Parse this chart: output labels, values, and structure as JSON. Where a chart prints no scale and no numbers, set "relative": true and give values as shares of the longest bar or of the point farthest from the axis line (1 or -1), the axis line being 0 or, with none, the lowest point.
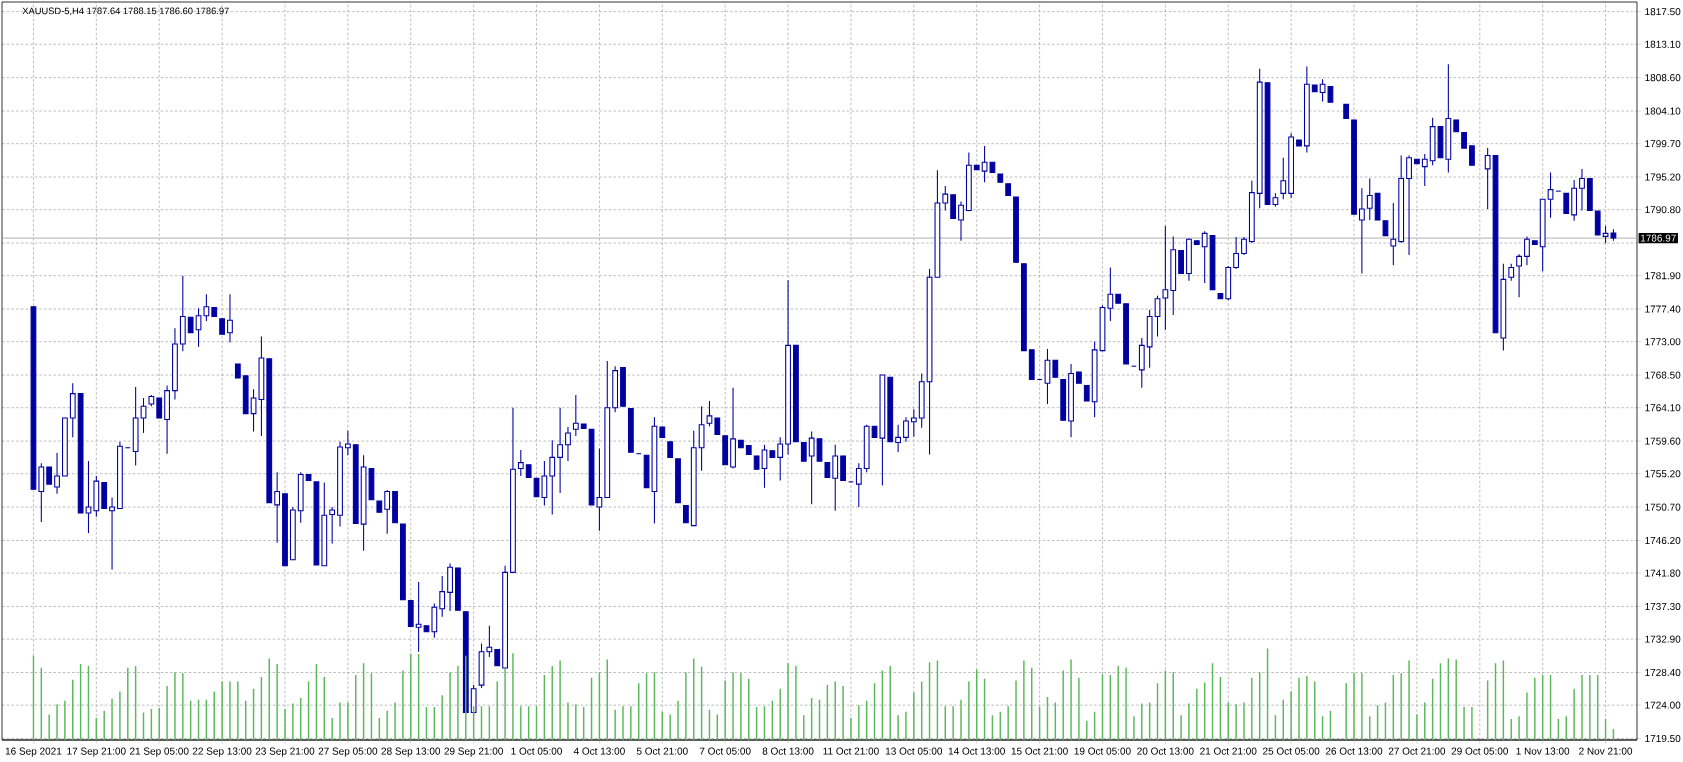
{
  "chart_data": [
    {
      "type": "candlestick",
      "title": "XAUUSD-5,H4  1787.64 1788.15 1786.60 1786.97",
      "color": "#0000a0",
      "grid": true,
      "categories": [
        "16 Sep 2021",
        null,
        null,
        null,
        null,
        null,
        null,
        null,
        "17 Sep 21:00",
        null,
        null,
        null,
        null,
        null,
        null,
        null,
        "21 Sep 05:00",
        null,
        null,
        null,
        null,
        null,
        null,
        null,
        "22 Sep 13:00",
        null,
        null,
        null,
        null,
        null,
        null,
        null,
        "23 Sep 21:00",
        null,
        null,
        null,
        null,
        null,
        null,
        null,
        "27 Sep 05:00",
        null,
        null,
        null,
        null,
        null,
        null,
        null,
        "28 Sep 13:00",
        null,
        null,
        null,
        null,
        null,
        null,
        null,
        "29 Sep 21:00",
        null,
        null,
        null,
        null,
        null,
        null,
        null,
        "1 Oct 05:00",
        null,
        null,
        null,
        null,
        null,
        null,
        null,
        "4 Oct 13:00",
        null,
        null,
        null,
        null,
        null,
        null,
        null,
        "5 Oct 21:00",
        null,
        null,
        null,
        null,
        null,
        null,
        null,
        "7 Oct 05:00",
        null,
        null,
        null,
        null,
        null,
        null,
        null,
        "8 Oct 13:00",
        null,
        null,
        null,
        null,
        null,
        null,
        null,
        "11 Oct 21:00",
        null,
        null,
        null,
        null,
        null,
        null,
        null,
        "13 Oct 05:00",
        null,
        null,
        null,
        null,
        null,
        null,
        null,
        "14 Oct 13:00",
        null,
        null,
        null,
        null,
        null,
        null,
        null,
        "15 Oct 21:00",
        null,
        null,
        null,
        null,
        null,
        null,
        null,
        "19 Oct 05:00",
        null,
        null,
        null,
        null,
        null,
        null,
        null,
        "20 Oct 13:00",
        null,
        null,
        null,
        null,
        null,
        null,
        null,
        "21 Oct 21:00",
        null,
        null,
        null,
        null,
        null,
        null,
        null,
        "25 Oct 05:00",
        null,
        null,
        null,
        null,
        null,
        null,
        null,
        "26 Oct 13:00",
        null,
        null,
        null,
        null,
        null,
        null,
        null,
        "27 Oct 21:00",
        null,
        null,
        null,
        null,
        null,
        null,
        null,
        "29 Oct 05:00",
        null,
        null,
        null,
        null,
        null,
        null,
        null,
        "1 Nov 13:00",
        null,
        null,
        null,
        null,
        null,
        null,
        null,
        "2 Nov 21:00",
        null
      ],
      "ohlc": [
        [
          1777.7,
          1777.7,
          1753.1,
          1753.1
        ],
        [
          1752.8,
          1756.6,
          1748.7,
          1756.1
        ],
        [
          1756.1,
          1756.1,
          1753.8,
          1753.8
        ],
        [
          1753.4,
          1758.0,
          1752.5,
          1754.9
        ],
        [
          1754.9,
          1762.7,
          1754.9,
          1762.7
        ],
        [
          1762.7,
          1767.4,
          1760.1,
          1766.0
        ],
        [
          1766.0,
          1766.0,
          1749.9,
          1749.9
        ],
        [
          1749.9,
          1756.9,
          1747.2,
          1750.7
        ],
        [
          1750.2,
          1754.9,
          1749.4,
          1754.2
        ],
        [
          1754.0,
          1754.0,
          1750.5,
          1750.5
        ],
        [
          1750.2,
          1752.0,
          1742.3,
          1750.7
        ],
        [
          1750.5,
          1759.5,
          1750.5,
          1758.9
        ],
        [
          1758.7,
          1758.7,
          1758.7,
          1758.7
        ],
        [
          1758.2,
          1766.9,
          1756.3,
          1762.7
        ],
        [
          1762.7,
          1765.4,
          1760.7,
          1764.3
        ],
        [
          1764.6,
          1765.8,
          1764.3,
          1765.6
        ],
        [
          1765.4,
          1765.4,
          1762.7,
          1762.7
        ],
        [
          1762.5,
          1767.1,
          1757.9,
          1766.4
        ],
        [
          1766.4,
          1774.8,
          1765.2,
          1772.7
        ],
        [
          1772.7,
          1781.9,
          1771.7,
          1776.4
        ],
        [
          1776.3,
          1776.3,
          1774.2,
          1774.2
        ],
        [
          1774.6,
          1777.5,
          1772.3,
          1776.5
        ],
        [
          1776.5,
          1779.4,
          1775.8,
          1777.7
        ],
        [
          1777.6,
          1777.6,
          1776.4,
          1776.4
        ],
        [
          1776.1,
          1776.1,
          1774.0,
          1774.0
        ],
        [
          1774.2,
          1779.4,
          1772.9,
          1775.9
        ],
        [
          1770.0,
          1770.0,
          1768.1,
          1768.1
        ],
        [
          1768.4,
          1768.4,
          1763.3,
          1763.3
        ],
        [
          1763.3,
          1766.6,
          1760.9,
          1765.4
        ],
        [
          1765.2,
          1773.7,
          1760.3,
          1770.8
        ],
        [
          1770.7,
          1770.7,
          1751.3,
          1751.3
        ],
        [
          1751.0,
          1755.4,
          1745.9,
          1752.8
        ],
        [
          1752.5,
          1752.5,
          1742.8,
          1742.8
        ],
        [
          1743.6,
          1750.7,
          1743.6,
          1750.3
        ],
        [
          1750.2,
          1755.4,
          1748.6,
          1755.1
        ],
        [
          1755.1,
          1755.1,
          1754.3,
          1754.3
        ],
        [
          1754.1,
          1754.1,
          1742.9,
          1742.9
        ],
        [
          1742.8,
          1754.0,
          1742.8,
          1749.6
        ],
        [
          1749.7,
          1750.7,
          1745.8,
          1750.3
        ],
        [
          1749.6,
          1759.5,
          1748.1,
          1758.8
        ],
        [
          1758.7,
          1761.0,
          1757.7,
          1759.2
        ],
        [
          1759.1,
          1759.1,
          1748.5,
          1748.5
        ],
        [
          1748.4,
          1757.7,
          1744.8,
          1756.1
        ],
        [
          1755.9,
          1755.9,
          1751.7,
          1751.7
        ],
        [
          1751.5,
          1751.5,
          1750.0,
          1750.0
        ],
        [
          1750.4,
          1753.0,
          1747.1,
          1752.8
        ],
        [
          1752.8,
          1752.8,
          1748.6,
          1748.6
        ],
        [
          1748.4,
          1748.4,
          1738.2,
          1738.2
        ],
        [
          1738.1,
          1738.1,
          1734.6,
          1734.6
        ],
        [
          1734.5,
          1740.6,
          1731.2,
          1734.9
        ],
        [
          1734.7,
          1734.7,
          1733.9,
          1733.9
        ],
        [
          1733.9,
          1737.7,
          1733.1,
          1737.2
        ],
        [
          1737.0,
          1741.4,
          1735.9,
          1739.3
        ],
        [
          1739.2,
          1743.1,
          1736.7,
          1742.6
        ],
        [
          1742.5,
          1742.5,
          1736.8,
          1736.8
        ],
        [
          1736.6,
          1736.6,
          1723.0,
          1723.0
        ],
        [
          1723.0,
          1726.7,
          1722.8,
          1726.2
        ],
        [
          1726.7,
          1732.3,
          1726.3,
          1731.2
        ],
        [
          1731.2,
          1734.7,
          1730.5,
          1731.8
        ],
        [
          1731.5,
          1731.5,
          1729.3,
          1729.3
        ],
        [
          1729.0,
          1742.8,
          1729.0,
          1741.9
        ],
        [
          1741.9,
          1764.1,
          1741.9,
          1755.8
        ],
        [
          1755.9,
          1758.4,
          1754.9,
          1756.7
        ],
        [
          1756.4,
          1756.4,
          1754.7,
          1754.7
        ],
        [
          1754.6,
          1754.6,
          1752.1,
          1752.1
        ],
        [
          1752.0,
          1756.9,
          1750.9,
          1754.9
        ],
        [
          1754.9,
          1759.7,
          1749.7,
          1757.4
        ],
        [
          1757.4,
          1764.1,
          1752.6,
          1759.1
        ],
        [
          1759.1,
          1761.5,
          1756.9,
          1760.7
        ],
        [
          1761.2,
          1765.8,
          1760.3,
          1762.0
        ],
        [
          1761.9,
          1761.9,
          1761.3,
          1761.3
        ],
        [
          1761.2,
          1761.2,
          1751.0,
          1751.0
        ],
        [
          1750.7,
          1758.6,
          1747.5,
          1752.0
        ],
        [
          1752.0,
          1770.4,
          1752.0,
          1764.1
        ],
        [
          1764.1,
          1769.7,
          1763.5,
          1769.1
        ],
        [
          1769.5,
          1769.5,
          1764.3,
          1764.3
        ],
        [
          1764.0,
          1764.0,
          1758.1,
          1758.1
        ],
        [
          1757.9,
          1757.9,
          1757.9,
          1757.9
        ],
        [
          1757.7,
          1757.7,
          1753.3,
          1753.3
        ],
        [
          1752.8,
          1762.8,
          1748.5,
          1761.6
        ],
        [
          1761.5,
          1761.5,
          1760.1,
          1760.1
        ],
        [
          1759.5,
          1759.5,
          1757.4,
          1757.4
        ],
        [
          1757.2,
          1757.2,
          1751.3,
          1751.3
        ],
        [
          1750.9,
          1750.9,
          1748.6,
          1748.6
        ],
        [
          1748.2,
          1761.0,
          1748.2,
          1758.7
        ],
        [
          1758.7,
          1764.3,
          1755.6,
          1761.8
        ],
        [
          1762.0,
          1765.0,
          1761.6,
          1763.0
        ],
        [
          1762.7,
          1762.7,
          1760.5,
          1760.5
        ],
        [
          1760.3,
          1760.3,
          1756.4,
          1756.4
        ],
        [
          1756.1,
          1766.8,
          1755.9,
          1759.9
        ],
        [
          1759.7,
          1759.7,
          1758.7,
          1758.7
        ],
        [
          1759.0,
          1759.0,
          1757.8,
          1757.8
        ],
        [
          1757.6,
          1757.6,
          1755.8,
          1755.8
        ],
        [
          1755.9,
          1759.1,
          1753.3,
          1758.4
        ],
        [
          1758.3,
          1758.3,
          1757.4,
          1757.4
        ],
        [
          1757.4,
          1760.1,
          1754.3,
          1759.2
        ],
        [
          1759.2,
          1781.3,
          1757.8,
          1772.5
        ],
        [
          1772.5,
          1772.5,
          1759.5,
          1759.5
        ],
        [
          1759.4,
          1759.4,
          1756.9,
          1756.9
        ],
        [
          1757.6,
          1760.9,
          1751.1,
          1760.0
        ],
        [
          1759.9,
          1759.9,
          1756.9,
          1756.9
        ],
        [
          1756.7,
          1756.7,
          1754.7,
          1754.7
        ],
        [
          1754.6,
          1759.1,
          1750.2,
          1757.6
        ],
        [
          1757.6,
          1757.6,
          1754.3,
          1754.3
        ],
        [
          1754.1,
          1754.1,
          1754.1,
          1754.1
        ],
        [
          1753.8,
          1756.6,
          1750.7,
          1755.9
        ],
        [
          1755.9,
          1761.8,
          1755.4,
          1761.6
        ],
        [
          1761.6,
          1761.6,
          1760.1,
          1760.1
        ],
        [
          1760.0,
          1768.5,
          1753.6,
          1768.5
        ],
        [
          1768.2,
          1768.2,
          1759.5,
          1759.5
        ],
        [
          1759.4,
          1761.8,
          1758.1,
          1760.1
        ],
        [
          1760.1,
          1762.8,
          1759.5,
          1762.3
        ],
        [
          1762.2,
          1763.9,
          1760.2,
          1762.7
        ],
        [
          1762.7,
          1768.7,
          1761.4,
          1767.6
        ],
        [
          1767.6,
          1782.8,
          1757.8,
          1781.7
        ],
        [
          1781.7,
          1796.1,
          1781.7,
          1791.7
        ],
        [
          1791.7,
          1794.0,
          1790.7,
          1792.9
        ],
        [
          1792.8,
          1792.8,
          1789.6,
          1789.6
        ],
        [
          1789.4,
          1791.9,
          1786.6,
          1791.4
        ],
        [
          1790.7,
          1798.5,
          1790.6,
          1796.8
        ],
        [
          1796.8,
          1796.8,
          1796.2,
          1796.2
        ],
        [
          1796.0,
          1799.4,
          1794.5,
          1797.2
        ],
        [
          1797.2,
          1797.2,
          1795.8,
          1795.8
        ],
        [
          1795.6,
          1795.6,
          1794.5,
          1794.5
        ],
        [
          1794.3,
          1794.3,
          1792.7,
          1792.7
        ],
        [
          1792.5,
          1792.5,
          1783.7,
          1783.7
        ],
        [
          1783.5,
          1783.5,
          1771.8,
          1771.8
        ],
        [
          1771.9,
          1771.9,
          1767.9,
          1767.9
        ],
        [
          1767.9,
          1767.9,
          1767.9,
          1767.9
        ],
        [
          1767.4,
          1772.0,
          1764.6,
          1770.5
        ],
        [
          1770.5,
          1770.5,
          1768.2,
          1768.2
        ],
        [
          1767.9,
          1767.9,
          1762.4,
          1762.4
        ],
        [
          1762.3,
          1770.0,
          1760.1,
          1768.7
        ],
        [
          1768.9,
          1768.9,
          1767.4,
          1767.4
        ],
        [
          1767.1,
          1767.1,
          1765.0,
          1765.0
        ],
        [
          1764.9,
          1773.0,
          1762.8,
          1771.9
        ],
        [
          1771.8,
          1777.9,
          1771.7,
          1777.6
        ],
        [
          1777.5,
          1783.0,
          1775.8,
          1779.4
        ],
        [
          1779.4,
          1779.4,
          1778.2,
          1778.2
        ],
        [
          1778.1,
          1778.1,
          1770.0,
          1770.0
        ],
        [
          1769.7,
          1769.7,
          1769.7,
          1769.7
        ],
        [
          1769.2,
          1773.5,
          1766.8,
          1772.5
        ],
        [
          1772.3,
          1777.3,
          1769.5,
          1776.4
        ],
        [
          1776.4,
          1779.2,
          1773.7,
          1778.8
        ],
        [
          1778.9,
          1788.6,
          1774.6,
          1780.0
        ],
        [
          1779.9,
          1787.2,
          1776.6,
          1785.4
        ],
        [
          1785.3,
          1785.3,
          1782.2,
          1782.2
        ],
        [
          1782.2,
          1786.9,
          1781.2,
          1786.8
        ],
        [
          1786.6,
          1786.6,
          1786.1,
          1786.1
        ],
        [
          1785.8,
          1787.9,
          1780.9,
          1787.6
        ],
        [
          1787.3,
          1787.3,
          1780.0,
          1780.0
        ],
        [
          1779.5,
          1779.5,
          1778.8,
          1778.8
        ],
        [
          1778.8,
          1783.2,
          1778.6,
          1783.0
        ],
        [
          1783.0,
          1787.1,
          1782.8,
          1784.9
        ],
        [
          1784.9,
          1787.1,
          1784.7,
          1786.8
        ],
        [
          1786.5,
          1794.7,
          1786.3,
          1793.1
        ],
        [
          1793.0,
          1809.8,
          1791.0,
          1808.0
        ],
        [
          1807.9,
          1807.9,
          1791.5,
          1791.5
        ],
        [
          1791.5,
          1793.0,
          1791.2,
          1792.4
        ],
        [
          1793.0,
          1797.8,
          1792.2,
          1794.7
        ],
        [
          1793.0,
          1801.1,
          1792.4,
          1800.6
        ],
        [
          1800.2,
          1800.2,
          1799.4,
          1799.4
        ],
        [
          1799.4,
          1810.1,
          1798.5,
          1807.7
        ],
        [
          1807.6,
          1807.6,
          1806.7,
          1806.7
        ],
        [
          1806.6,
          1808.4,
          1805.4,
          1807.7
        ],
        [
          1807.4,
          1807.4,
          1805.3,
          1805.3
        ],
        null,
        [
          1805.0,
          1805.0,
          1803.1,
          1803.1
        ],
        [
          1802.9,
          1802.9,
          1790.2,
          1790.2
        ],
        [
          1789.4,
          1793.7,
          1782.2,
          1790.9
        ],
        [
          1791.0,
          1795.0,
          1789.4,
          1792.7
        ],
        [
          1793.0,
          1793.0,
          1789.4,
          1789.4
        ],
        [
          1789.3,
          1789.3,
          1787.3,
          1787.3
        ],
        [
          1785.9,
          1791.7,
          1783.3,
          1786.8
        ],
        [
          1786.5,
          1798.1,
          1786.3,
          1795.0
        ],
        [
          1795.0,
          1798.1,
          1784.7,
          1797.8
        ],
        [
          1797.6,
          1797.6,
          1797.0,
          1797.0
        ],
        [
          1796.6,
          1798.3,
          1794.0,
          1797.6
        ],
        [
          1797.4,
          1803.2,
          1796.8,
          1802.0
        ],
        [
          1802.0,
          1802.0,
          1797.8,
          1797.8
        ],
        [
          1797.6,
          1810.4,
          1795.8,
          1803.1
        ],
        [
          1802.9,
          1802.9,
          1801.3,
          1801.3
        ],
        [
          1801.2,
          1801.2,
          1799.1,
          1799.1
        ],
        [
          1799.4,
          1799.4,
          1796.8,
          1796.8
        ],
        null,
        [
          1796.3,
          1799.1,
          1790.9,
          1798.1
        ],
        [
          1798.1,
          1798.1,
          1774.2,
          1774.2
        ],
        [
          1773.5,
          1783.5,
          1771.8,
          1781.4
        ],
        [
          1781.7,
          1783.5,
          1781.2,
          1783.0
        ],
        [
          1783.2,
          1784.8,
          1779.0,
          1784.5
        ],
        [
          1784.5,
          1787.2,
          1783.3,
          1786.8
        ],
        [
          1786.6,
          1786.6,
          1786.1,
          1786.1
        ],
        [
          1785.8,
          1792.2,
          1782.5,
          1792.2
        ],
        [
          1792.2,
          1795.8,
          1789.7,
          1793.5
        ],
        [
          1793.3,
          1793.3,
          1793.3,
          1793.3
        ],
        [
          1793.0,
          1793.0,
          1790.3,
          1790.3
        ],
        [
          1790.1,
          1794.8,
          1789.3,
          1793.7
        ],
        [
          1793.7,
          1796.3,
          1790.7,
          1795.0
        ],
        [
          1795.0,
          1795.0,
          1790.7,
          1790.7
        ],
        [
          1790.6,
          1790.6,
          1787.4,
          1787.4
        ],
        [
          1787.2,
          1788.6,
          1786.3,
          1787.6
        ],
        [
          1787.64,
          1788.15,
          1786.6,
          1786.97
        ]
      ],
      "ylim": [
        1719.3,
        1818.8
      ],
      "yticks": [
        {
          "value": 1817.5,
          "label": "1817.50"
        },
        {
          "value": 1813.1,
          "label": "1813.10"
        },
        {
          "value": 1808.6,
          "label": "1808.60"
        },
        {
          "value": 1804.1,
          "label": "1804.10"
        },
        {
          "value": 1799.7,
          "label": "1799.70"
        },
        {
          "value": 1795.2,
          "label": "1795.20"
        },
        {
          "value": 1790.8,
          "label": "1790.80"
        },
        {
          "value": 1786.3,
          "label": null
        },
        {
          "value": 1781.9,
          "label": "1781.90"
        },
        {
          "value": 1777.4,
          "label": "1777.40"
        },
        {
          "value": 1773,
          "label": "1773.00"
        },
        {
          "value": 1768.5,
          "label": "1768.50"
        },
        {
          "value": 1764.1,
          "label": "1764.10"
        },
        {
          "value": 1759.6,
          "label": "1759.60"
        },
        {
          "value": 1755.2,
          "label": "1755.20"
        },
        {
          "value": 1750.7,
          "label": "1750.70"
        },
        {
          "value": 1746.2,
          "label": "1746.20"
        },
        {
          "value": 1741.8,
          "label": "1741.80"
        },
        {
          "value": 1737.3,
          "label": "1737.30"
        },
        {
          "value": 1732.9,
          "label": "1732.90"
        },
        {
          "value": 1728.4,
          "label": "1728.40"
        },
        {
          "value": 1724,
          "label": "1724.00"
        },
        {
          "value": 1719.5,
          "label": "1719.50"
        }
      ],
      "ref_lines": [
        {
          "axis": "y",
          "value": 1786.97,
          "label": "1786.97",
          "color": "#a0a0a0"
        }
      ]
    },
    {
      "type": "bar",
      "relative": true,
      "color": "#5cb85c",
      "categories": [
        null,
        null,
        null,
        null,
        null,
        null,
        null,
        null,
        null,
        null,
        null,
        null,
        null,
        null,
        null,
        null,
        null,
        null,
        null,
        null,
        null,
        null,
        null,
        null,
        null,
        null,
        null,
        null,
        null,
        null,
        null,
        null,
        null,
        null,
        null,
        null,
        null,
        null,
        null,
        null,
        null,
        null,
        null,
        null,
        null,
        null,
        null,
        null,
        null,
        null,
        null,
        null,
        null,
        null,
        null,
        null,
        null,
        null,
        null,
        null,
        null,
        null,
        null,
        null,
        null,
        null,
        null,
        null,
        null,
        null,
        null,
        null,
        null,
        null,
        null,
        null,
        null,
        null,
        null,
        null,
        null,
        null,
        null,
        null,
        null,
        null,
        null,
        null,
        null,
        null,
        null,
        null,
        null,
        null,
        null,
        null,
        null,
        null,
        null,
        null,
        null,
        null,
        null,
        null,
        null,
        null,
        null,
        null,
        null,
        null,
        null,
        null,
        null,
        null,
        null,
        null,
        null,
        null,
        null,
        null,
        null,
        null,
        null,
        null,
        null,
        null,
        null,
        null,
        null,
        null,
        null,
        null,
        null,
        null,
        null,
        null,
        null,
        null,
        null,
        null,
        null,
        null,
        null,
        null,
        null,
        null,
        null,
        null,
        null,
        null,
        null,
        null,
        null,
        null,
        null,
        null,
        null,
        null,
        null,
        null,
        null,
        null,
        null,
        null,
        null,
        null,
        null,
        null,
        null,
        null,
        null,
        null,
        null,
        null,
        null,
        null,
        null,
        null,
        null,
        null,
        null,
        null,
        null,
        null,
        null,
        null,
        null,
        null,
        null,
        null,
        null,
        null,
        null,
        null,
        null,
        null,
        null,
        null,
        null,
        null,
        null,
        null
      ],
      "values": [
        0.92,
        0.79,
        0.28,
        0.39,
        0.43,
        0.66,
        0.83,
        0.81,
        0.24,
        0.32,
        0.45,
        0.53,
        0.79,
        0.81,
        0.3,
        0.34,
        0.35,
        0.59,
        0.74,
        0.73,
        0.43,
        0.44,
        0.44,
        0.53,
        0.64,
        0.64,
        0.64,
        0.43,
        0.56,
        0.69,
        0.89,
        0.83,
        0.34,
        0.4,
        0.46,
        0.64,
        0.83,
        0.69,
        0.24,
        0.41,
        0.41,
        0.71,
        0.84,
        0.73,
        0.24,
        0.32,
        0.41,
        0.76,
        0.94,
        0.94,
        0.36,
        0.36,
        0.49,
        0.74,
        0.81,
        0.92,
        0.37,
        0.37,
        0.37,
        0.64,
        0.78,
        0.95,
        0.37,
        0.37,
        0.37,
        0.71,
        0.81,
        0.87,
        0.41,
        0.39,
        0.36,
        0.68,
        0.74,
        0.88,
        0.33,
        0.37,
        0.37,
        0.62,
        0.73,
        0.74,
        0.31,
        0.28,
        0.43,
        0.74,
        0.89,
        0.8,
        0.33,
        0.28,
        0.65,
        0.74,
        0.73,
        0.67,
        0.36,
        0.37,
        0.43,
        0.56,
        0.84,
        0.81,
        0.27,
        0.46,
        0.44,
        0.6,
        0.64,
        0.59,
        0.24,
        0.38,
        0.43,
        0.62,
        0.76,
        0.81,
        0.27,
        0.31,
        0.52,
        0.64,
        0.85,
        0.87,
        0.37,
        0.37,
        0.44,
        0.64,
        0.77,
        0.67,
        0.27,
        0.31,
        0.37,
        0.65,
        0.87,
        0.79,
        0.36,
        0.47,
        0.41,
        0.76,
        0.88,
        0.68,
        0.21,
        0.31,
        0.72,
        0.71,
        0.81,
        0.79,
        0.26,
        0.4,
        0.41,
        0.62,
        0.76,
        0.74,
        0.27,
        0.4,
        0.56,
        0.63,
        0.84,
        0.69,
        0.41,
        0.39,
        0.41,
        0.68,
        0.74,
        1.0,
        0.27,
        0.44,
        0.53,
        0.68,
        0.7,
        0.64,
        0.26,
        0.32,
        null,
        0.62,
        0.73,
        0.73,
        0.26,
        0.38,
        0.41,
        0.71,
        0.73,
        0.87,
        0.28,
        0.41,
        0.67,
        0.84,
        0.89,
        0.88,
        0.36,
        0.36,
        null,
        0.65,
        0.84,
        0.87,
        0.23,
        0.26,
        0.52,
        0.68,
        0.71,
        0.71,
        0.23,
        0.26,
        0.56,
        0.71,
        0.71,
        0.71,
        0.23,
        0.12
      ]
    }
  ]
}
